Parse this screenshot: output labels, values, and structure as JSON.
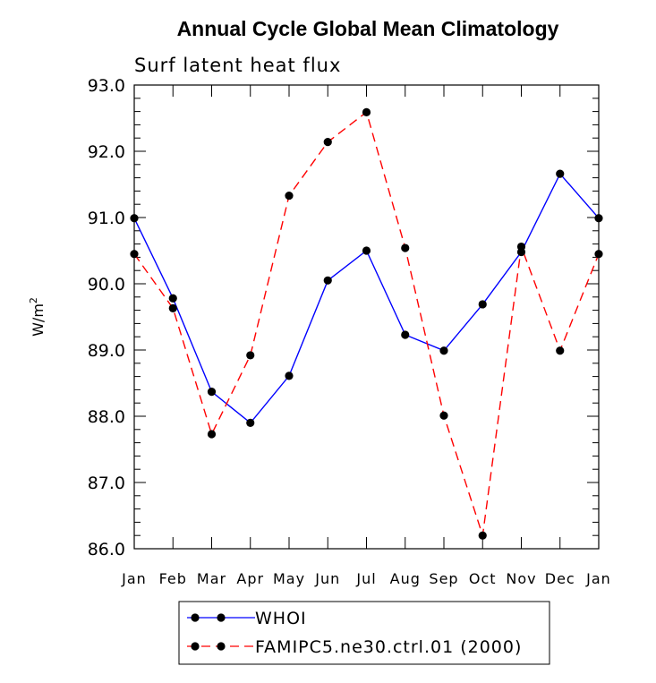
{
  "chart_data": {
    "type": "line",
    "title": "Annual Cycle Global Mean Climatology",
    "subtitle": "Surf latent heat flux",
    "ylabel": "W/m",
    "ylabel_sup": "2",
    "categories": [
      "Jan",
      "Feb",
      "Mar",
      "Apr",
      "May",
      "Jun",
      "Jul",
      "Aug",
      "Sep",
      "Oct",
      "Nov",
      "Dec",
      "Jan"
    ],
    "ylim": [
      86.0,
      93.0
    ],
    "yticks": [
      "86.0",
      "87.0",
      "88.0",
      "89.0",
      "90.0",
      "91.0",
      "92.0",
      "93.0"
    ],
    "grid": false,
    "legend_position": "bottom-center",
    "series": [
      {
        "name": "WHOI",
        "color": "#0000ff",
        "dash": "solid",
        "marker": "circle",
        "values": [
          90.99,
          89.78,
          88.37,
          87.9,
          88.61,
          90.05,
          90.5,
          89.23,
          88.99,
          89.69,
          90.48,
          91.66,
          90.99
        ]
      },
      {
        "name": "FAMIPC5.ne30.ctrl.01 (2000)",
        "color": "#ff0000",
        "dash": "dashed",
        "marker": "circle",
        "values": [
          90.45,
          89.63,
          87.73,
          88.92,
          91.33,
          92.14,
          92.59,
          90.54,
          88.01,
          86.2,
          90.56,
          88.99,
          90.45
        ]
      }
    ]
  }
}
